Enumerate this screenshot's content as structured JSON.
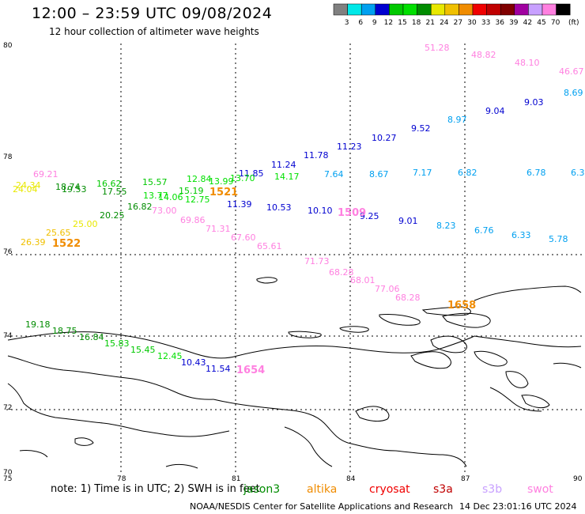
{
  "header": {
    "title": "12:00 – 23:59 UTC 09/08/2024",
    "subtitle": "12 hour collection of altimeter wave heights"
  },
  "colorbar": {
    "unit": "(ft)",
    "bins": [
      {
        "color": "#808080",
        "label": "3"
      },
      {
        "color": "#00e8e8",
        "label": "6"
      },
      {
        "color": "#00a0f0",
        "label": "9"
      },
      {
        "color": "#0000d0",
        "label": "12"
      },
      {
        "color": "#00c800",
        "label": "15"
      },
      {
        "color": "#00e000",
        "label": "18"
      },
      {
        "color": "#008c00",
        "label": "21"
      },
      {
        "color": "#e8e800",
        "label": "24"
      },
      {
        "color": "#f0c000",
        "label": "27"
      },
      {
        "color": "#f08c00",
        "label": "30"
      },
      {
        "color": "#f00000",
        "label": "33"
      },
      {
        "color": "#c00000",
        "label": "36"
      },
      {
        "color": "#800000",
        "label": "39"
      },
      {
        "color": "#a000a0",
        "label": "42"
      },
      {
        "color": "#c8a0ff",
        "label": "45"
      },
      {
        "color": "#ff80e0",
        "label": "70"
      },
      {
        "color": "#000000",
        "label": ""
      }
    ]
  },
  "axes": {
    "lat_labels": [
      "80",
      "78",
      "76",
      "74",
      "72",
      "70"
    ],
    "lon_labels": [
      "75",
      "78",
      "81",
      "84",
      "87",
      "90"
    ]
  },
  "readings": [
    {
      "t": "51.28",
      "c": "#ff80e0"
    },
    {
      "t": "48.82",
      "c": "#ff80e0"
    },
    {
      "t": "48.10",
      "c": "#ff80e0"
    },
    {
      "t": "46.67",
      "c": "#ff80e0"
    },
    {
      "t": "8.69",
      "c": "#00a0f0"
    },
    {
      "t": "9.03",
      "c": "#0000d0"
    },
    {
      "t": "9.04",
      "c": "#0000d0"
    },
    {
      "t": "8.97",
      "c": "#00a0f0"
    },
    {
      "t": "9.52",
      "c": "#0000d0"
    },
    {
      "t": "10.27",
      "c": "#0000d0"
    },
    {
      "t": "11.23",
      "c": "#0000d0"
    },
    {
      "t": "11.78",
      "c": "#0000d0"
    },
    {
      "t": "11.24",
      "c": "#0000d0"
    },
    {
      "t": "11.85",
      "c": "#0000d0"
    },
    {
      "t": "13.70",
      "c": "#00e000"
    },
    {
      "t": "13.99",
      "c": "#00e000"
    },
    {
      "t": "12.84",
      "c": "#00e000"
    },
    {
      "t": "14.17",
      "c": "#00e000"
    },
    {
      "t": "7.64",
      "c": "#00a0f0"
    },
    {
      "t": "8.67",
      "c": "#00a0f0"
    },
    {
      "t": "7.17",
      "c": "#00a0f0"
    },
    {
      "t": "6.82",
      "c": "#00a0f0"
    },
    {
      "t": "6.78",
      "c": "#00a0f0"
    },
    {
      "t": "6.3",
      "c": "#00a0f0"
    },
    {
      "t": "69.21",
      "c": "#ff80e0"
    },
    {
      "t": "24.34",
      "c": "#e8e800"
    },
    {
      "t": "24.04",
      "c": "#e8e800"
    },
    {
      "t": "18.74",
      "c": "#008c00"
    },
    {
      "t": "19.53",
      "c": "#008c00"
    },
    {
      "t": "16.62",
      "c": "#00c800"
    },
    {
      "t": "17.55",
      "c": "#008c00"
    },
    {
      "t": "15.57",
      "c": "#00c800"
    },
    {
      "t": "13.77",
      "c": "#00e000"
    },
    {
      "t": "14.06",
      "c": "#00e000"
    },
    {
      "t": "15.19",
      "c": "#00c800"
    },
    {
      "t": "12.75",
      "c": "#00e000"
    },
    {
      "t": "11.39",
      "c": "#0000d0"
    },
    {
      "t": "10.53",
      "c": "#0000d0"
    },
    {
      "t": "10.10",
      "c": "#0000d0"
    },
    {
      "t": "9.25",
      "c": "#0000d0"
    },
    {
      "t": "9.01",
      "c": "#0000d0"
    },
    {
      "t": "8.23",
      "c": "#00a0f0"
    },
    {
      "t": "6.76",
      "c": "#00a0f0"
    },
    {
      "t": "6.33",
      "c": "#00a0f0"
    },
    {
      "t": "5.78",
      "c": "#00a0f0"
    },
    {
      "t": "20.25",
      "c": "#008c00"
    },
    {
      "t": "16.82",
      "c": "#008c00"
    },
    {
      "t": "25.00",
      "c": "#e8e800"
    },
    {
      "t": "25.65",
      "c": "#f0c000"
    },
    {
      "t": "26.39",
      "c": "#f0c000"
    },
    {
      "t": "73.00",
      "c": "#ff80e0"
    },
    {
      "t": "69.86",
      "c": "#ff80e0"
    },
    {
      "t": "71.31",
      "c": "#ff80e0"
    },
    {
      "t": "67.60",
      "c": "#ff80e0"
    },
    {
      "t": "65.61",
      "c": "#ff80e0"
    },
    {
      "t": "71.73",
      "c": "#ff80e0"
    },
    {
      "t": "68.28",
      "c": "#ff80e0"
    },
    {
      "t": "68.01",
      "c": "#ff80e0"
    },
    {
      "t": "77.06",
      "c": "#ff80e0"
    },
    {
      "t": "68.28",
      "c": "#ff80e0"
    },
    {
      "t": "19.18",
      "c": "#008c00"
    },
    {
      "t": "18.75",
      "c": "#008c00"
    },
    {
      "t": "16.84",
      "c": "#008c00"
    },
    {
      "t": "15.83",
      "c": "#00c800"
    },
    {
      "t": "15.45",
      "c": "#00c800"
    },
    {
      "t": "12.45",
      "c": "#00e000"
    },
    {
      "t": "10.43",
      "c": "#0000d0"
    },
    {
      "t": "11.54",
      "c": "#0000d0"
    }
  ],
  "pass_ids": [
    {
      "t": "1521",
      "c": "#f08c00"
    },
    {
      "t": "1509",
      "c": "#ff80e0"
    },
    {
      "t": "1522",
      "c": "#f08c00"
    },
    {
      "t": "1654",
      "c": "#ff80e0"
    },
    {
      "t": "1658",
      "c": "#f08c00"
    }
  ],
  "note": "note:  1) Time is in UTC; 2) SWH is in feet",
  "satellites": [
    {
      "name": "jason3",
      "color": "#008c00"
    },
    {
      "name": "altika",
      "color": "#f08c00"
    },
    {
      "name": "cryosat",
      "color": "#f00000"
    },
    {
      "name": "s3a",
      "color": "#c00000"
    },
    {
      "name": "s3b",
      "color": "#c8a0ff"
    },
    {
      "name": "swot",
      "color": "#ff80e0"
    }
  ],
  "footer": {
    "left": "NOAA/NESDIS Center for Satellite Applications and Research",
    "right": "14 Dec 23:01:16 UTC 2024"
  }
}
